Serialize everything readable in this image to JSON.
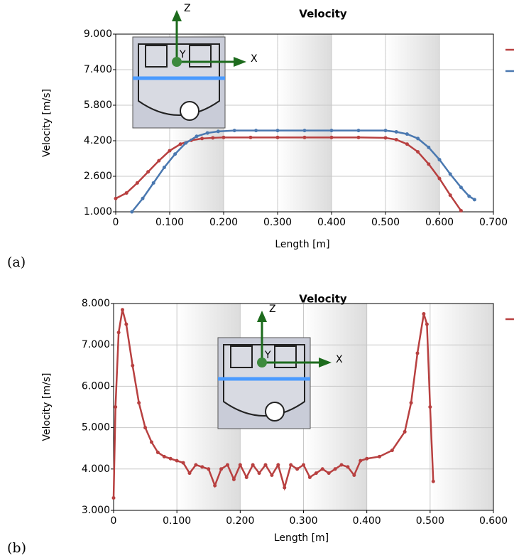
{
  "chart_data": [
    {
      "type": "line",
      "title": "Velocity",
      "xlabel": "Length [m]",
      "ylabel": "Velocity [m/s]",
      "panel_label": "(a)",
      "annotations": [
        "Z",
        "X",
        "Y"
      ],
      "xlim": [
        0,
        0.7
      ],
      "ylim": [
        1,
        9
      ],
      "xticks": [
        0,
        {
          "value": 0.1,
          "label": "0.100"
        },
        {
          "value": 0.2,
          "label": "0.200"
        },
        {
          "value": 0.3,
          "label": "0.300"
        },
        {
          "value": 0.4,
          "label": "0.400"
        },
        {
          "value": 0.5,
          "label": "0.500"
        },
        {
          "value": 0.6,
          "label": "0.600"
        },
        {
          "value": 0.7,
          "label": "0.700"
        }
      ],
      "yticks": [
        {
          "value": 1,
          "label": "1.000"
        },
        {
          "value": 2.6,
          "label": "2.600"
        },
        {
          "value": 4.2,
          "label": "4.200"
        },
        {
          "value": 5.8,
          "label": "5.800"
        },
        {
          "value": 7.4,
          "label": "7.400"
        },
        {
          "value": 9,
          "label": "9.000"
        }
      ],
      "grid": true,
      "series": [
        {
          "color": "#b84040",
          "x": [
            0,
            0.02,
            0.04,
            0.06,
            0.08,
            0.1,
            0.12,
            0.14,
            0.16,
            0.18,
            0.2,
            0.25,
            0.3,
            0.35,
            0.4,
            0.45,
            0.5,
            0.52,
            0.54,
            0.56,
            0.58,
            0.6,
            0.62,
            0.64
          ],
          "values": [
            1.6,
            1.85,
            2.3,
            2.8,
            3.3,
            3.75,
            4.05,
            4.22,
            4.3,
            4.33,
            4.35,
            4.35,
            4.35,
            4.35,
            4.35,
            4.35,
            4.33,
            4.25,
            4.05,
            3.7,
            3.15,
            2.5,
            1.75,
            1.05
          ]
        },
        {
          "color": "#4a78b0",
          "x": [
            0.03,
            0.05,
            0.07,
            0.09,
            0.11,
            0.13,
            0.15,
            0.17,
            0.19,
            0.22,
            0.26,
            0.3,
            0.35,
            0.4,
            0.45,
            0.5,
            0.52,
            0.54,
            0.56,
            0.58,
            0.6,
            0.62,
            0.64,
            0.655,
            0.665
          ],
          "values": [
            1.0,
            1.6,
            2.3,
            3.0,
            3.6,
            4.1,
            4.4,
            4.55,
            4.62,
            4.66,
            4.66,
            4.66,
            4.66,
            4.66,
            4.66,
            4.66,
            4.6,
            4.5,
            4.3,
            3.9,
            3.35,
            2.7,
            2.1,
            1.7,
            1.55
          ]
        }
      ]
    },
    {
      "type": "line",
      "title": "Velocity",
      "xlabel": "Length [m]",
      "ylabel": "Velocity [m/s]",
      "panel_label": "(b)",
      "annotations": [
        "Z",
        "X",
        "Y"
      ],
      "xlim": [
        0,
        0.6
      ],
      "ylim": [
        3,
        8
      ],
      "xticks": [
        0,
        {
          "value": 0.1,
          "label": "0.100"
        },
        {
          "value": 0.2,
          "label": "0.200"
        },
        {
          "value": 0.3,
          "label": "0.300"
        },
        {
          "value": 0.4,
          "label": "0.400"
        },
        {
          "value": 0.5,
          "label": "0.500"
        },
        {
          "value": 0.6,
          "label": "0.600"
        }
      ],
      "yticks": [
        {
          "value": 3,
          "label": "3.000"
        },
        {
          "value": 4,
          "label": "4.000"
        },
        {
          "value": 5,
          "label": "5.000"
        },
        {
          "value": 6,
          "label": "6.000"
        },
        {
          "value": 7,
          "label": "7.000"
        },
        {
          "value": 8,
          "label": "8.000"
        }
      ],
      "grid": true,
      "series": [
        {
          "color": "#b84040",
          "x": [
            0,
            0.003,
            0.008,
            0.014,
            0.02,
            0.03,
            0.04,
            0.05,
            0.06,
            0.07,
            0.08,
            0.09,
            0.1,
            0.11,
            0.12,
            0.13,
            0.14,
            0.15,
            0.16,
            0.17,
            0.18,
            0.19,
            0.2,
            0.21,
            0.22,
            0.23,
            0.24,
            0.25,
            0.26,
            0.27,
            0.28,
            0.29,
            0.3,
            0.31,
            0.32,
            0.33,
            0.34,
            0.35,
            0.36,
            0.37,
            0.38,
            0.39,
            0.4,
            0.42,
            0.44,
            0.46,
            0.47,
            0.48,
            0.49,
            0.495,
            0.5,
            0.505
          ],
          "values": [
            3.3,
            5.5,
            7.3,
            7.85,
            7.5,
            6.5,
            5.6,
            5.0,
            4.65,
            4.4,
            4.3,
            4.25,
            4.2,
            4.15,
            3.9,
            4.1,
            4.05,
            4.0,
            3.6,
            4.0,
            4.1,
            3.75,
            4.1,
            3.8,
            4.1,
            3.9,
            4.1,
            3.85,
            4.1,
            3.55,
            4.1,
            4.0,
            4.1,
            3.8,
            3.9,
            4.0,
            3.9,
            4.0,
            4.1,
            4.05,
            3.85,
            4.2,
            4.25,
            4.3,
            4.45,
            4.9,
            5.6,
            6.8,
            7.75,
            7.5,
            5.5,
            3.7
          ]
        }
      ]
    }
  ]
}
